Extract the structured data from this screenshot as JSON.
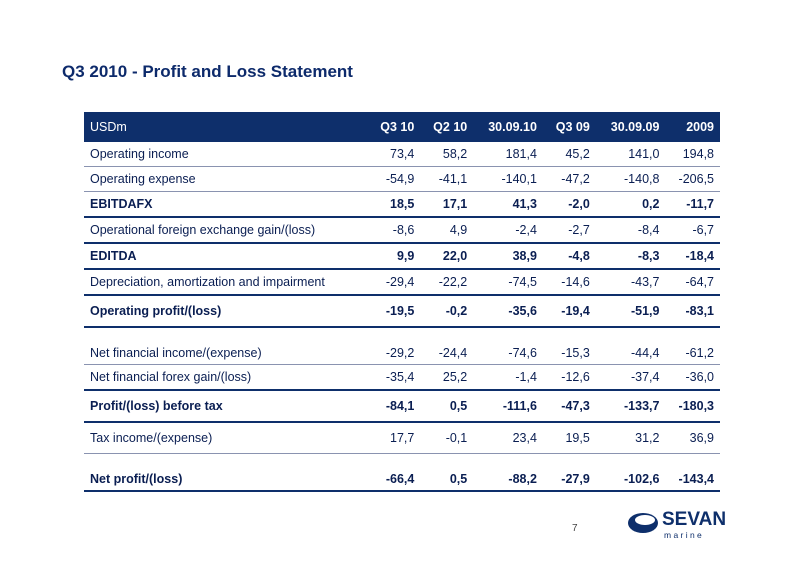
{
  "title": "Q3 2010 - Profit and Loss Statement",
  "table": {
    "headers": [
      "USDm",
      "Q3 10",
      "Q2 10",
      "30.09.10",
      "Q3 09",
      "30.09.09",
      "2009"
    ],
    "rows": [
      {
        "label": "Operating income",
        "values": [
          "73,4",
          "58,2",
          "181,4",
          "45,2",
          "141,0",
          "194,8"
        ]
      },
      {
        "label": "Operating expense",
        "values": [
          "-54,9",
          "-41,1",
          "-140,1",
          "-47,2",
          "-140,8",
          "-206,5"
        ]
      },
      {
        "label": "EBITDAFX",
        "values": [
          "18,5",
          "17,1",
          "41,3",
          "-2,0",
          "0,2",
          "-11,7"
        ]
      },
      {
        "label": "Operational foreign exchange gain/(loss)",
        "values": [
          "-8,6",
          "4,9",
          "-2,4",
          "-2,7",
          "-8,4",
          "-6,7"
        ]
      },
      {
        "label": "EDITDA",
        "values": [
          "9,9",
          "22,0",
          "38,9",
          "-4,8",
          "-8,3",
          "-18,4"
        ]
      },
      {
        "label": "Depreciation, amortization and impairment",
        "values": [
          "-29,4",
          "-22,2",
          "-74,5",
          "-14,6",
          "-43,7",
          "-64,7"
        ]
      },
      {
        "label": "Operating profit/(loss)",
        "values": [
          "-19,5",
          "-0,2",
          "-35,6",
          "-19,4",
          "-51,9",
          "-83,1"
        ]
      },
      {
        "label": "Net financial income/(expense)",
        "values": [
          "-29,2",
          "-24,4",
          "-74,6",
          "-15,3",
          "-44,4",
          "-61,2"
        ]
      },
      {
        "label": "Net financial forex gain/(loss)",
        "values": [
          "-35,4",
          "25,2",
          "-1,4",
          "-12,6",
          "-37,4",
          "-36,0"
        ]
      },
      {
        "label": "Profit/(loss) before tax",
        "values": [
          "-84,1",
          "0,5",
          "-111,6",
          "-47,3",
          "-133,7",
          "-180,3"
        ]
      },
      {
        "label": "Tax income/(expense)",
        "values": [
          "17,7",
          "-0,1",
          "23,4",
          "19,5",
          "31,2",
          "36,9"
        ]
      },
      {
        "label": "Net profit/(loss)",
        "values": [
          "-66,4",
          "0,5",
          "-88,2",
          "-27,9",
          "-102,6",
          "-143,4"
        ]
      }
    ]
  },
  "page_number": "7",
  "logo": {
    "word": "SEVAN",
    "sub": "m a r i n e",
    "color": "#0e2f6b"
  }
}
